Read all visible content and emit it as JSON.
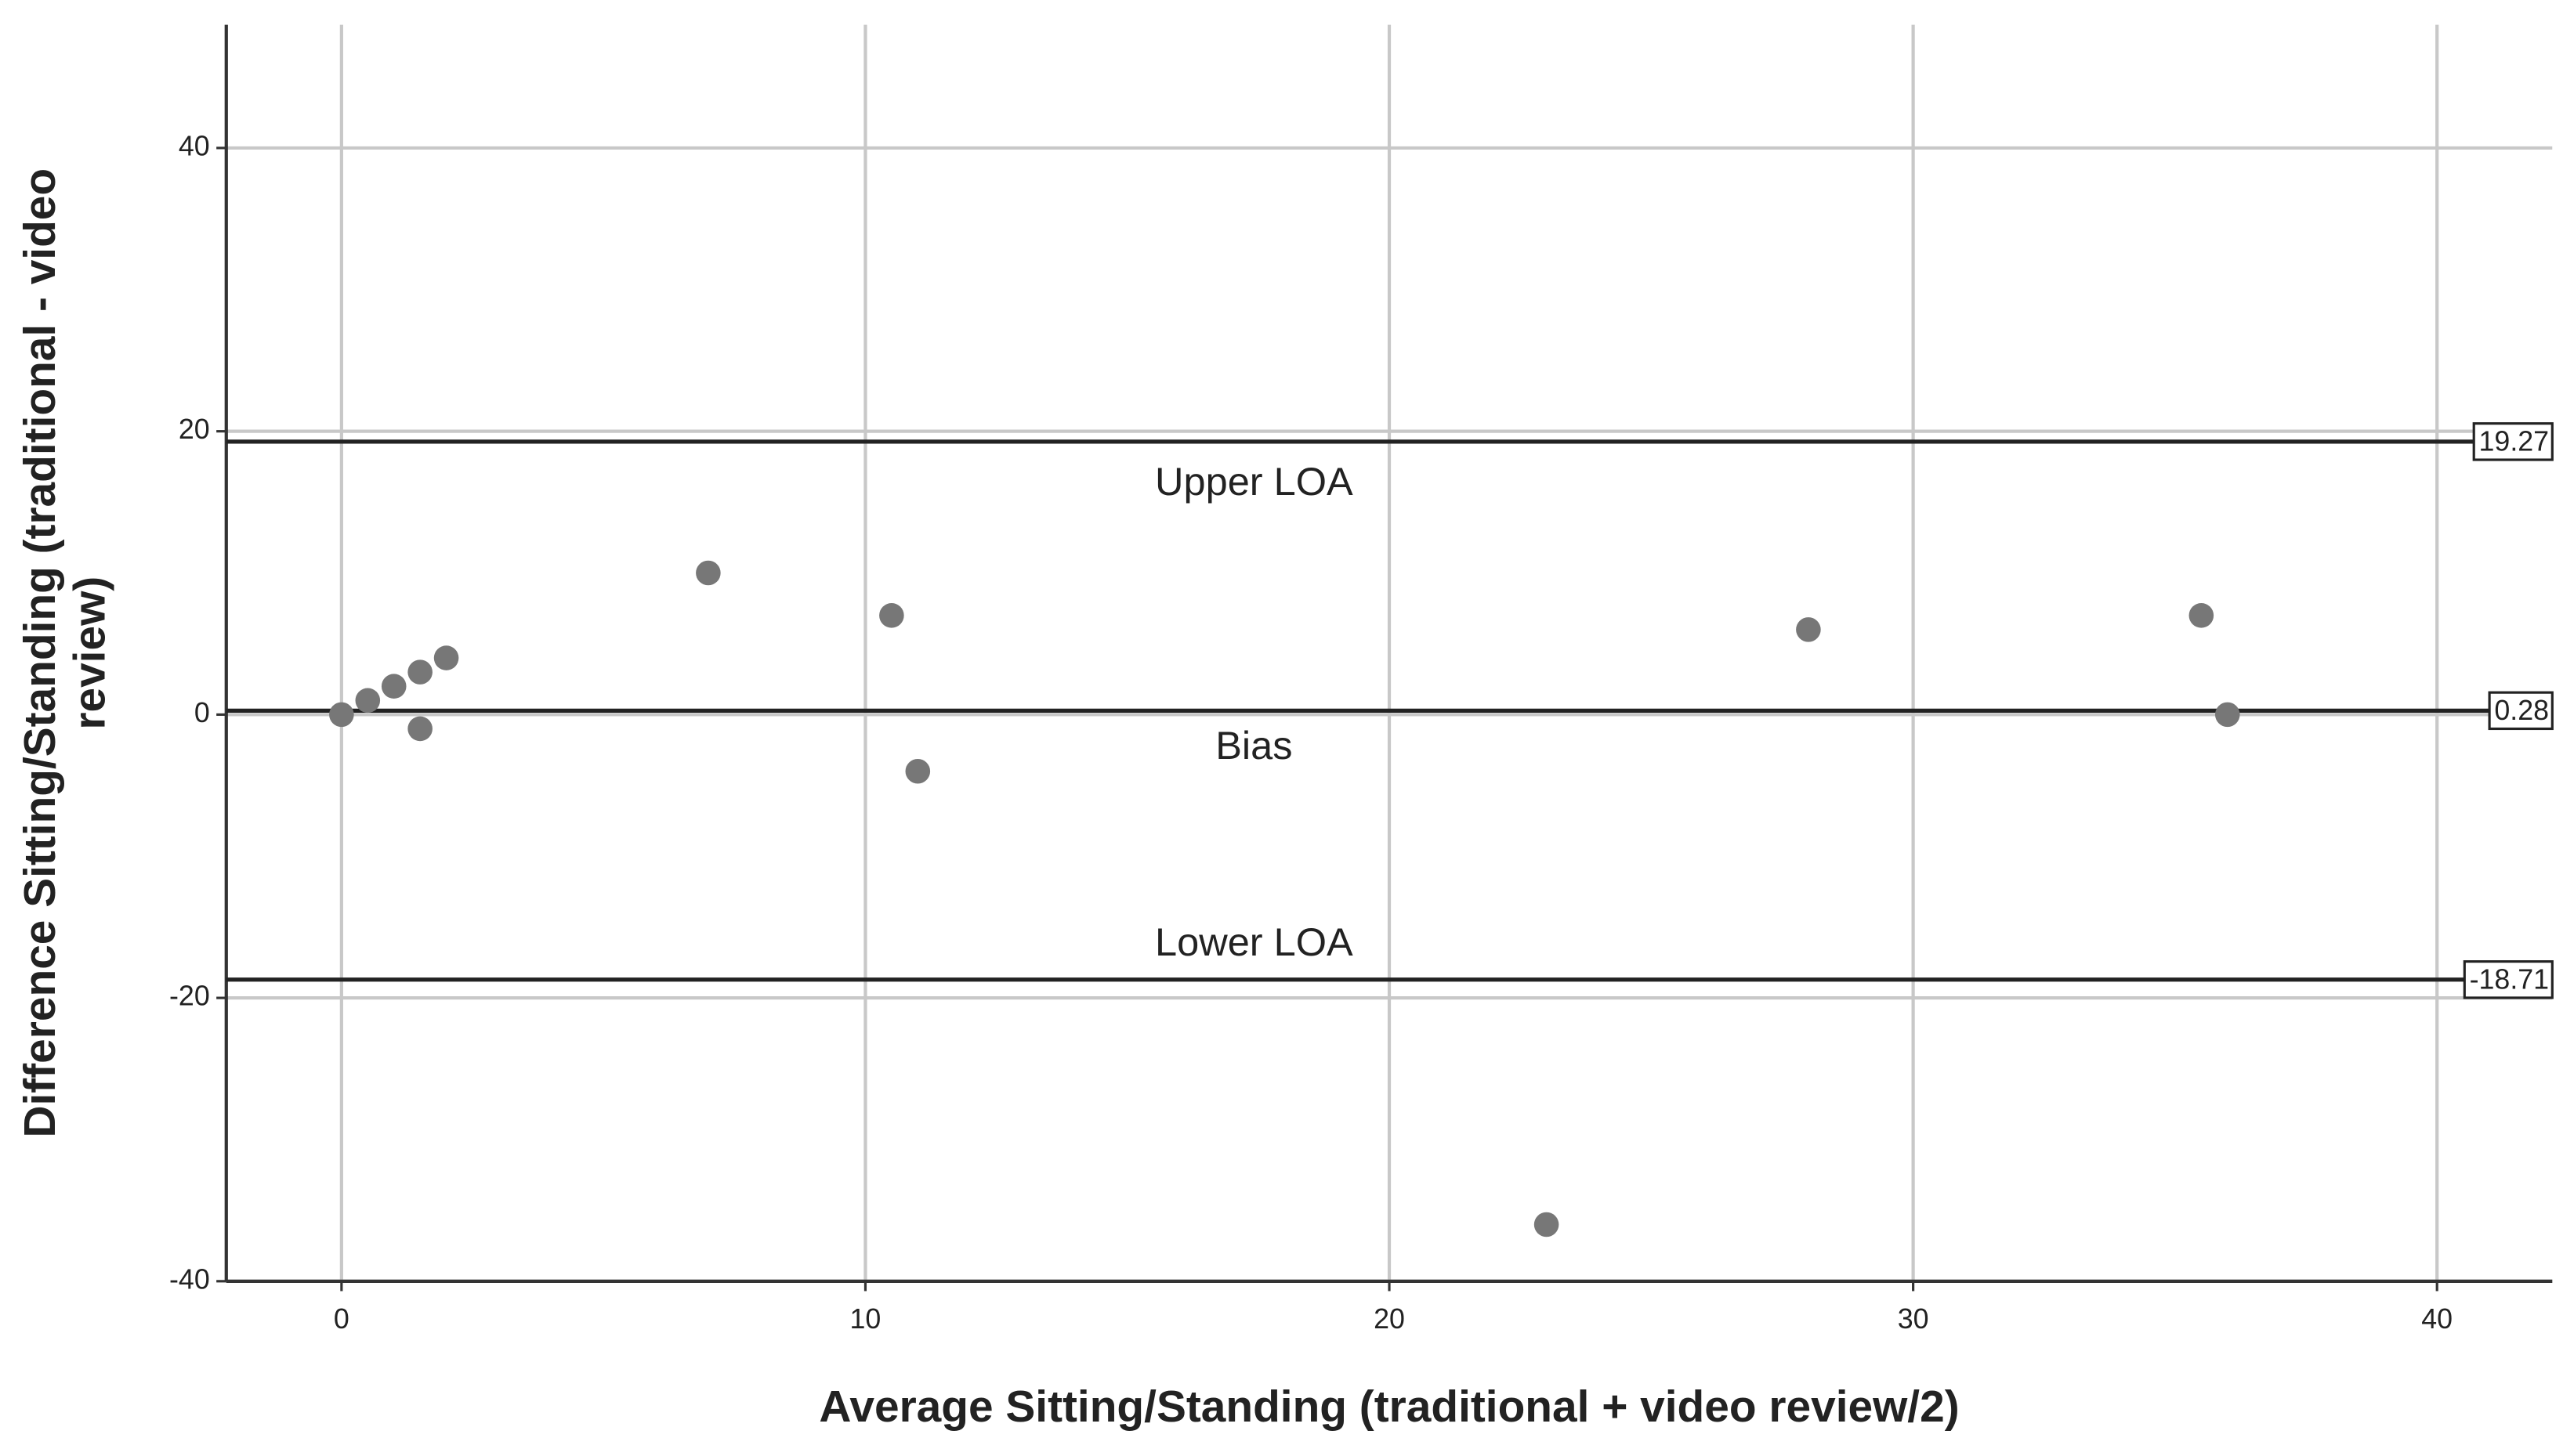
{
  "chart_data": {
    "type": "scatter",
    "x_label": "Average Sitting/Standing (traditional + video review/2)",
    "y_label_lines": [
      "Difference Sitting/Standing (traditional - video",
      "review)"
    ],
    "x": [
      0,
      0.5,
      1,
      1.5,
      2,
      1.5,
      7,
      10.5,
      11,
      23,
      28,
      35.5,
      36
    ],
    "values": [
      0,
      1,
      2,
      3,
      4,
      -1,
      10,
      7,
      -4,
      -36,
      6,
      7,
      0
    ],
    "color": "#777777",
    "xlim": [
      -2.2,
      42.2
    ],
    "ylim": [
      -40,
      48.7
    ],
    "xticks": [
      0,
      10,
      20,
      30,
      40
    ],
    "yticks": [
      -40,
      -20,
      0,
      20,
      40
    ],
    "grid": true,
    "reference_lines": [
      {
        "name": "Upper LOA",
        "value": 19.27
      },
      {
        "name": "Bias",
        "value": 0.28
      },
      {
        "name": "Lower LOA",
        "value": -18.71
      }
    ]
  }
}
